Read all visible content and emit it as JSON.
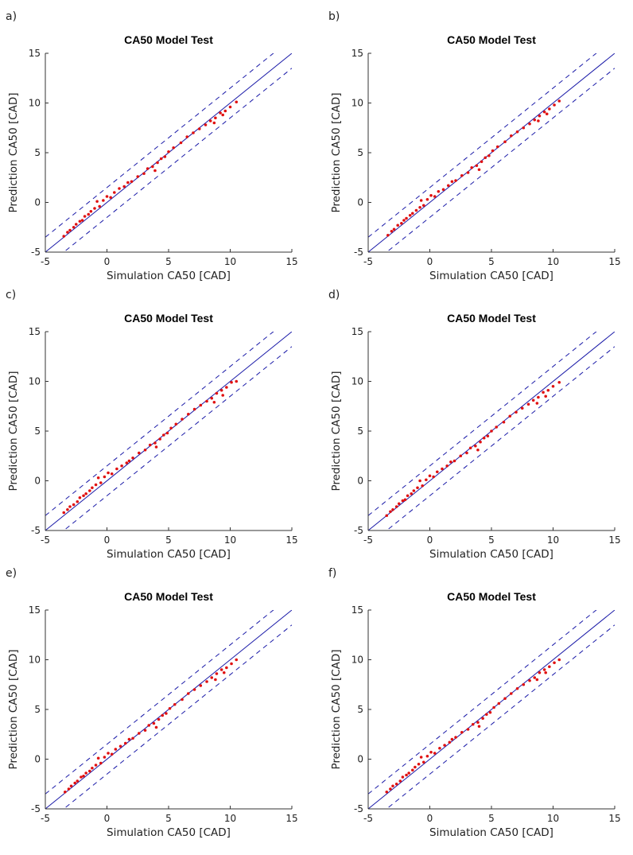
{
  "chart_data": [
    {
      "panel": "a)",
      "type": "scatter",
      "title": "CA50 Model Test",
      "xlabel": "Simulation CA50 [CAD]",
      "ylabel": "Prediction CA50 [CAD]",
      "xlim": [
        -5,
        15
      ],
      "ylim": [
        -5,
        15
      ],
      "xticks": [
        "-5",
        "0",
        "5",
        "10",
        "15"
      ],
      "yticks": [
        "-5",
        "0",
        "5",
        "10",
        "15"
      ],
      "grid": false,
      "reference_line": {
        "style": "solid",
        "color": "#1a1aa8",
        "slope": 1,
        "intercept": 0
      },
      "bound_lines": {
        "style": "dashed",
        "color": "#1a1aa8",
        "offset": 1.5
      },
      "marker_color": "#e01010",
      "points": [
        [
          -3.5,
          -3.4
        ],
        [
          -3.2,
          -3.0
        ],
        [
          -3.0,
          -2.8
        ],
        [
          -2.7,
          -2.5
        ],
        [
          -2.5,
          -2.2
        ],
        [
          -2.2,
          -1.9
        ],
        [
          -2.0,
          -1.8
        ],
        [
          -1.8,
          -1.4
        ],
        [
          -1.5,
          -1.2
        ],
        [
          -1.3,
          -0.9
        ],
        [
          -1.0,
          -0.6
        ],
        [
          -0.6,
          -0.4
        ],
        [
          -0.3,
          0.2
        ],
        [
          0.0,
          0.6
        ],
        [
          0.3,
          0.5
        ],
        [
          0.6,
          1.0
        ],
        [
          1.0,
          1.4
        ],
        [
          1.4,
          1.6
        ],
        [
          2.0,
          2.1
        ],
        [
          2.5,
          2.6
        ],
        [
          3.0,
          2.9
        ],
        [
          3.3,
          3.4
        ],
        [
          3.7,
          3.6
        ],
        [
          4.1,
          4.0
        ],
        [
          4.4,
          4.4
        ],
        [
          4.7,
          4.6
        ],
        [
          5.0,
          5.1
        ],
        [
          5.4,
          5.5
        ],
        [
          6.0,
          6.0
        ],
        [
          6.5,
          6.6
        ],
        [
          7.0,
          7.0
        ],
        [
          7.5,
          7.4
        ],
        [
          8.0,
          7.8
        ],
        [
          8.4,
          8.2
        ],
        [
          8.8,
          8.5
        ],
        [
          9.2,
          9.0
        ],
        [
          9.6,
          9.2
        ],
        [
          10.0,
          9.6
        ],
        [
          10.5,
          10.1
        ],
        [
          9.4,
          8.8
        ],
        [
          8.7,
          8.0
        ],
        [
          -0.8,
          0.1
        ],
        [
          3.9,
          3.2
        ],
        [
          1.7,
          2.0
        ]
      ]
    },
    {
      "panel": "b)",
      "type": "scatter",
      "title": "CA50 Model Test",
      "xlabel": "Simulation CA50 [CAD]",
      "ylabel": "Prediction CA50 [CAD]",
      "xlim": [
        -5,
        15
      ],
      "ylim": [
        -5,
        15
      ],
      "xticks": [
        "-5",
        "0",
        "5",
        "10",
        "15"
      ],
      "yticks": [
        "-5",
        "0",
        "5",
        "10",
        "15"
      ],
      "grid": false,
      "reference_line": {
        "style": "solid",
        "color": "#1a1aa8",
        "slope": 1,
        "intercept": 0
      },
      "bound_lines": {
        "style": "dashed",
        "color": "#1a1aa8",
        "offset": 1.5
      },
      "marker_color": "#e01010",
      "points": [
        [
          -3.4,
          -3.3
        ],
        [
          -3.1,
          -2.9
        ],
        [
          -2.9,
          -2.7
        ],
        [
          -2.6,
          -2.3
        ],
        [
          -2.3,
          -2.1
        ],
        [
          -2.1,
          -1.8
        ],
        [
          -1.9,
          -1.6
        ],
        [
          -1.6,
          -1.3
        ],
        [
          -1.4,
          -1.1
        ],
        [
          -1.1,
          -0.8
        ],
        [
          -0.8,
          -0.5
        ],
        [
          -0.5,
          -0.3
        ],
        [
          -0.2,
          0.3
        ],
        [
          0.1,
          0.7
        ],
        [
          0.4,
          0.6
        ],
        [
          0.7,
          1.1
        ],
        [
          1.1,
          1.3
        ],
        [
          1.5,
          1.7
        ],
        [
          2.1,
          2.2
        ],
        [
          2.6,
          2.7
        ],
        [
          3.1,
          3.0
        ],
        [
          3.4,
          3.5
        ],
        [
          3.8,
          3.7
        ],
        [
          4.2,
          4.1
        ],
        [
          4.5,
          4.5
        ],
        [
          4.8,
          4.7
        ],
        [
          5.1,
          5.2
        ],
        [
          5.5,
          5.6
        ],
        [
          6.1,
          6.1
        ],
        [
          6.6,
          6.7
        ],
        [
          7.1,
          7.1
        ],
        [
          7.6,
          7.5
        ],
        [
          8.1,
          7.9
        ],
        [
          8.5,
          8.3
        ],
        [
          8.9,
          8.7
        ],
        [
          9.3,
          9.1
        ],
        [
          9.7,
          9.4
        ],
        [
          10.1,
          9.8
        ],
        [
          10.5,
          10.2
        ],
        [
          9.5,
          8.9
        ],
        [
          8.8,
          8.2
        ],
        [
          -0.7,
          0.2
        ],
        [
          4.0,
          3.3
        ],
        [
          1.8,
          2.1
        ]
      ]
    },
    {
      "panel": "c)",
      "type": "scatter",
      "title": "CA50 Model Test",
      "xlabel": "Simulation CA50 [CAD]",
      "ylabel": "Prediction CA50 [CAD]",
      "xlim": [
        -5,
        15
      ],
      "ylim": [
        -5,
        15
      ],
      "xticks": [
        "-5",
        "0",
        "5",
        "10",
        "15"
      ],
      "yticks": [
        "-5",
        "0",
        "5",
        "10",
        "15"
      ],
      "grid": false,
      "reference_line": {
        "style": "solid",
        "color": "#1a1aa8",
        "slope": 1,
        "intercept": 0
      },
      "bound_lines": {
        "style": "dashed",
        "color": "#1a1aa8",
        "offset": 1.5
      },
      "marker_color": "#e01010",
      "points": [
        [
          -3.5,
          -3.2
        ],
        [
          -3.2,
          -2.9
        ],
        [
          -3.0,
          -2.6
        ],
        [
          -2.7,
          -2.4
        ],
        [
          -2.4,
          -2.1
        ],
        [
          -2.2,
          -1.7
        ],
        [
          -1.9,
          -1.5
        ],
        [
          -1.7,
          -1.3
        ],
        [
          -1.4,
          -1.0
        ],
        [
          -1.2,
          -0.7
        ],
        [
          -0.9,
          -0.4
        ],
        [
          -0.5,
          -0.2
        ],
        [
          -0.2,
          0.4
        ],
        [
          0.1,
          0.8
        ],
        [
          0.4,
          0.7
        ],
        [
          0.8,
          1.2
        ],
        [
          1.2,
          1.5
        ],
        [
          1.6,
          1.8
        ],
        [
          2.1,
          2.3
        ],
        [
          2.6,
          2.8
        ],
        [
          3.1,
          3.1
        ],
        [
          3.5,
          3.6
        ],
        [
          3.9,
          3.8
        ],
        [
          4.3,
          4.2
        ],
        [
          4.6,
          4.6
        ],
        [
          4.9,
          4.8
        ],
        [
          5.2,
          5.3
        ],
        [
          5.6,
          5.7
        ],
        [
          6.1,
          6.2
        ],
        [
          6.6,
          6.7
        ],
        [
          7.1,
          7.2
        ],
        [
          7.6,
          7.6
        ],
        [
          8.1,
          8.0
        ],
        [
          8.5,
          8.3
        ],
        [
          8.9,
          8.8
        ],
        [
          9.3,
          9.1
        ],
        [
          9.7,
          9.4
        ],
        [
          10.1,
          9.9
        ],
        [
          10.5,
          10.0
        ],
        [
          9.4,
          8.6
        ],
        [
          8.7,
          7.9
        ],
        [
          -0.7,
          0.3
        ],
        [
          4.0,
          3.4
        ],
        [
          1.8,
          2.0
        ]
      ]
    },
    {
      "panel": "d)",
      "type": "scatter",
      "title": "CA50 Model Test",
      "xlabel": "Simulation CA50 [CAD]",
      "ylabel": "Prediction CA50 [CAD]",
      "xlim": [
        -5,
        15
      ],
      "ylim": [
        -5,
        15
      ],
      "xticks": [
        "-5",
        "0",
        "5",
        "10",
        "15"
      ],
      "yticks": [
        "-5",
        "0",
        "5",
        "10",
        "15"
      ],
      "grid": false,
      "reference_line": {
        "style": "solid",
        "color": "#1a1aa8",
        "slope": 1,
        "intercept": 0
      },
      "bound_lines": {
        "style": "dashed",
        "color": "#1a1aa8",
        "offset": 1.5
      },
      "marker_color": "#e01010",
      "points": [
        [
          -3.5,
          -3.5
        ],
        [
          -3.2,
          -3.1
        ],
        [
          -3.0,
          -2.9
        ],
        [
          -2.7,
          -2.6
        ],
        [
          -2.5,
          -2.3
        ],
        [
          -2.2,
          -2.0
        ],
        [
          -2.0,
          -1.9
        ],
        [
          -1.8,
          -1.5
        ],
        [
          -1.5,
          -1.3
        ],
        [
          -1.3,
          -1.0
        ],
        [
          -1.0,
          -0.7
        ],
        [
          -0.6,
          -0.5
        ],
        [
          -0.3,
          0.1
        ],
        [
          0.0,
          0.5
        ],
        [
          0.3,
          0.4
        ],
        [
          0.6,
          0.9
        ],
        [
          1.0,
          1.2
        ],
        [
          1.4,
          1.5
        ],
        [
          2.0,
          2.0
        ],
        [
          2.5,
          2.5
        ],
        [
          3.0,
          2.8
        ],
        [
          3.3,
          3.3
        ],
        [
          3.7,
          3.5
        ],
        [
          4.1,
          3.9
        ],
        [
          4.4,
          4.3
        ],
        [
          4.7,
          4.5
        ],
        [
          5.0,
          5.0
        ],
        [
          5.4,
          5.4
        ],
        [
          6.0,
          5.9
        ],
        [
          6.5,
          6.5
        ],
        [
          7.0,
          6.9
        ],
        [
          7.5,
          7.3
        ],
        [
          8.0,
          7.7
        ],
        [
          8.4,
          8.1
        ],
        [
          8.8,
          8.4
        ],
        [
          9.2,
          8.9
        ],
        [
          9.6,
          9.1
        ],
        [
          10.0,
          9.5
        ],
        [
          10.5,
          9.9
        ],
        [
          9.4,
          8.5
        ],
        [
          8.7,
          7.8
        ],
        [
          -0.8,
          0.0
        ],
        [
          3.9,
          3.1
        ],
        [
          1.7,
          1.9
        ]
      ]
    },
    {
      "panel": "e)",
      "type": "scatter",
      "title": "CA50 Model Test",
      "xlabel": "Simulation CA50 [CAD]",
      "ylabel": "Prediction CA50 [CAD]",
      "xlim": [
        -5,
        15
      ],
      "ylim": [
        -5,
        15
      ],
      "xticks": [
        "-5",
        "0",
        "5",
        "10",
        "15"
      ],
      "yticks": [
        "-5",
        "0",
        "5",
        "10",
        "15"
      ],
      "grid": false,
      "reference_line": {
        "style": "solid",
        "color": "#1a1aa8",
        "slope": 1,
        "intercept": 0
      },
      "bound_lines": {
        "style": "dashed",
        "color": "#1a1aa8",
        "offset": 1.5
      },
      "marker_color": "#e01010",
      "points": [
        [
          -3.4,
          -3.3
        ],
        [
          -3.1,
          -3.0
        ],
        [
          -2.9,
          -2.7
        ],
        [
          -2.6,
          -2.4
        ],
        [
          -2.4,
          -2.2
        ],
        [
          -2.1,
          -1.8
        ],
        [
          -1.9,
          -1.7
        ],
        [
          -1.7,
          -1.4
        ],
        [
          -1.4,
          -1.2
        ],
        [
          -1.2,
          -0.9
        ],
        [
          -0.9,
          -0.6
        ],
        [
          -0.5,
          -0.4
        ],
        [
          -0.2,
          0.2
        ],
        [
          0.1,
          0.6
        ],
        [
          0.4,
          0.5
        ],
        [
          0.7,
          1.0
        ],
        [
          1.1,
          1.3
        ],
        [
          1.5,
          1.6
        ],
        [
          2.1,
          2.1
        ],
        [
          2.6,
          2.6
        ],
        [
          3.1,
          2.9
        ],
        [
          3.4,
          3.4
        ],
        [
          3.8,
          3.6
        ],
        [
          4.2,
          4.0
        ],
        [
          4.5,
          4.4
        ],
        [
          4.8,
          4.6
        ],
        [
          5.1,
          5.1
        ],
        [
          5.5,
          5.5
        ],
        [
          6.1,
          6.0
        ],
        [
          6.6,
          6.6
        ],
        [
          7.1,
          7.0
        ],
        [
          7.6,
          7.4
        ],
        [
          8.1,
          7.8
        ],
        [
          8.5,
          8.2
        ],
        [
          8.9,
          8.6
        ],
        [
          9.3,
          9.0
        ],
        [
          9.7,
          9.2
        ],
        [
          10.1,
          9.6
        ],
        [
          10.5,
          10.0
        ],
        [
          9.5,
          8.7
        ],
        [
          8.8,
          8.0
        ],
        [
          -0.7,
          0.1
        ],
        [
          4.0,
          3.2
        ],
        [
          1.8,
          2.0
        ]
      ]
    },
    {
      "panel": "f)",
      "type": "scatter",
      "title": "CA50 Model Test",
      "xlabel": "Simulation CA50 [CAD]",
      "ylabel": "Prediction CA50 [CAD]",
      "xlim": [
        -5,
        15
      ],
      "ylim": [
        -5,
        15
      ],
      "xticks": [
        "-5",
        "0",
        "5",
        "10",
        "15"
      ],
      "yticks": [
        "-5",
        "0",
        "5",
        "10",
        "15"
      ],
      "grid": false,
      "reference_line": {
        "style": "solid",
        "color": "#1a1aa8",
        "slope": 1,
        "intercept": 0
      },
      "bound_lines": {
        "style": "dashed",
        "color": "#1a1aa8",
        "offset": 1.5
      },
      "marker_color": "#e01010",
      "points": [
        [
          -3.5,
          -3.3
        ],
        [
          -3.2,
          -3.0
        ],
        [
          -3.0,
          -2.7
        ],
        [
          -2.7,
          -2.5
        ],
        [
          -2.4,
          -2.2
        ],
        [
          -2.2,
          -1.8
        ],
        [
          -1.9,
          -1.6
        ],
        [
          -1.7,
          -1.4
        ],
        [
          -1.4,
          -1.1
        ],
        [
          -1.2,
          -0.8
        ],
        [
          -0.9,
          -0.5
        ],
        [
          -0.5,
          -0.3
        ],
        [
          -0.2,
          0.3
        ],
        [
          0.1,
          0.7
        ],
        [
          0.4,
          0.6
        ],
        [
          0.8,
          1.1
        ],
        [
          1.2,
          1.4
        ],
        [
          1.6,
          1.7
        ],
        [
          2.1,
          2.2
        ],
        [
          2.6,
          2.7
        ],
        [
          3.1,
          3.0
        ],
        [
          3.5,
          3.5
        ],
        [
          3.9,
          3.7
        ],
        [
          4.3,
          4.1
        ],
        [
          4.6,
          4.5
        ],
        [
          4.9,
          4.7
        ],
        [
          5.2,
          5.2
        ],
        [
          5.6,
          5.6
        ],
        [
          6.1,
          6.1
        ],
        [
          6.6,
          6.6
        ],
        [
          7.1,
          7.1
        ],
        [
          7.6,
          7.5
        ],
        [
          8.1,
          7.9
        ],
        [
          8.5,
          8.2
        ],
        [
          8.9,
          8.7
        ],
        [
          9.3,
          9.0
        ],
        [
          9.7,
          9.3
        ],
        [
          10.1,
          9.7
        ],
        [
          10.5,
          10.0
        ],
        [
          9.4,
          8.7
        ],
        [
          8.7,
          8.0
        ],
        [
          -0.7,
          0.2
        ],
        [
          4.0,
          3.3
        ],
        [
          1.8,
          2.0
        ]
      ]
    }
  ]
}
